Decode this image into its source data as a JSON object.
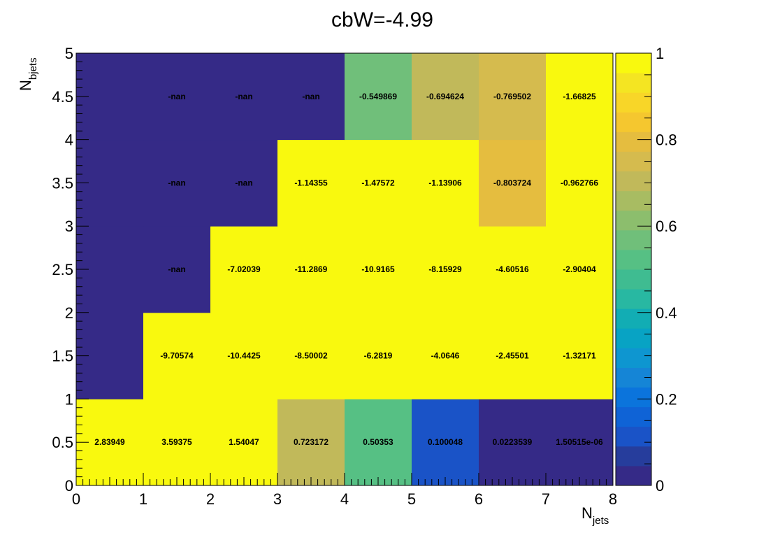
{
  "chart_data": {
    "type": "heatmap",
    "title": "cbW=-4.99",
    "xlabel": {
      "main": "N",
      "sub": "jets"
    },
    "ylabel": {
      "main": "N",
      "sub": "bjets"
    },
    "x_range": [
      0,
      8
    ],
    "y_range": [
      0,
      5
    ],
    "x_bins": [
      0,
      1,
      2,
      3,
      4,
      5,
      6,
      7,
      8
    ],
    "y_bins": [
      0,
      1,
      2,
      3,
      4,
      5
    ],
    "x_ticks": [
      "0",
      "1",
      "2",
      "3",
      "4",
      "5",
      "6",
      "7",
      "8"
    ],
    "y_ticks": [
      "0",
      "0.5",
      "1",
      "1.5",
      "2",
      "2.5",
      "3",
      "3.5",
      "4",
      "4.5",
      "5"
    ],
    "z_range": [
      0,
      1
    ],
    "z_ticks": [
      "0",
      "0.2",
      "0.4",
      "0.6",
      "0.8",
      "1"
    ],
    "palette": [
      "#352a87",
      "#263d9c",
      "#1a53c7",
      "#0f63d6",
      "#0b74dc",
      "#1585d6",
      "#0e96d0",
      "#08a3c4",
      "#12adb4",
      "#28b8a2",
      "#3fbc91",
      "#56c084",
      "#70bf7a",
      "#8cbe6d",
      "#a8bc62",
      "#c1b95a",
      "#d5bb4e",
      "#e5bd3f",
      "#f5c72f",
      "#f8d628",
      "#f4e522",
      "#f9f90e"
    ],
    "cells": [
      [
        {
          "z": 1.0,
          "label": "2.83949"
        },
        {
          "z": 1.0,
          "label": "3.59375"
        },
        {
          "z": 1.0,
          "label": "1.54047"
        },
        {
          "z": 0.723172,
          "label": "0.723172"
        },
        {
          "z": 0.50353,
          "label": "0.50353"
        },
        {
          "z": 0.100048,
          "label": "0.100048"
        },
        {
          "z": 0.0223539,
          "label": "0.0223539"
        },
        {
          "z": 1.5e-06,
          "label": "1.50515e-06"
        }
      ],
      [
        {
          "z": 0.0,
          "label": ""
        },
        {
          "z": 1.0,
          "label": "-9.70574"
        },
        {
          "z": 1.0,
          "label": "-10.4425"
        },
        {
          "z": 1.0,
          "label": "-8.50002"
        },
        {
          "z": 1.0,
          "label": "-6.2819"
        },
        {
          "z": 1.0,
          "label": "-4.0646"
        },
        {
          "z": 1.0,
          "label": "-2.45501"
        },
        {
          "z": 1.0,
          "label": "-1.32171"
        }
      ],
      [
        {
          "z": 0.0,
          "label": ""
        },
        {
          "z": -1,
          "label": "-nan"
        },
        {
          "z": 1.0,
          "label": "-7.02039"
        },
        {
          "z": 1.0,
          "label": "-11.2869"
        },
        {
          "z": 1.0,
          "label": "-10.9165"
        },
        {
          "z": 1.0,
          "label": "-8.15929"
        },
        {
          "z": 1.0,
          "label": "-4.60516"
        },
        {
          "z": 1.0,
          "label": "-2.90404"
        }
      ],
      [
        {
          "z": 0.0,
          "label": ""
        },
        {
          "z": -1,
          "label": "-nan"
        },
        {
          "z": -1,
          "label": "-nan"
        },
        {
          "z": 1.0,
          "label": "-1.14355"
        },
        {
          "z": 1.0,
          "label": "-1.47572"
        },
        {
          "z": 1.0,
          "label": "-1.13906"
        },
        {
          "z": 0.803724,
          "label": "-0.803724"
        },
        {
          "z": 1.0,
          "label": "-0.962766"
        }
      ],
      [
        {
          "z": 0.0,
          "label": ""
        },
        {
          "z": -1,
          "label": "-nan"
        },
        {
          "z": -1,
          "label": "-nan"
        },
        {
          "z": -1,
          "label": "-nan"
        },
        {
          "z": 0.549869,
          "label": "-0.549869"
        },
        {
          "z": 0.694624,
          "label": "-0.694624"
        },
        {
          "z": 0.769502,
          "label": "-0.769502"
        },
        {
          "z": 1.0,
          "label": "-1.66825"
        }
      ]
    ]
  }
}
